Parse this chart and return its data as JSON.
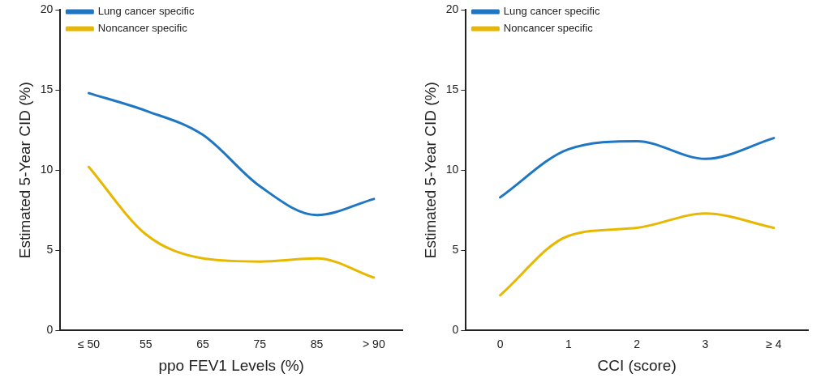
{
  "chart_data": [
    {
      "type": "line",
      "xlabel": "ppo FEV1 Levels (%)",
      "ylabel": "Estimated 5-Year CID (%)",
      "categories": [
        "≤ 50",
        "55",
        "65",
        "75",
        "85",
        "> 90"
      ],
      "series": [
        {
          "name": "Lung cancer specific",
          "color": "#1f77c4",
          "values": [
            14.8,
            13.7,
            12.2,
            9.0,
            7.2,
            8.2
          ]
        },
        {
          "name": "Noncancer specific",
          "color": "#e8b800",
          "values": [
            10.2,
            6.0,
            4.5,
            4.3,
            4.5,
            3.3
          ]
        }
      ],
      "ylim": [
        0,
        20
      ],
      "yticks": [
        0,
        5,
        10,
        15,
        20
      ],
      "grid": false,
      "legend": "top left",
      "marker": "none",
      "line_style": "solid"
    },
    {
      "type": "line",
      "xlabel": "CCI (score)",
      "ylabel": "Estimated 5-Year CID (%)",
      "categories": [
        "0",
        "1",
        "2",
        "3",
        "≥ 4"
      ],
      "series": [
        {
          "name": "Lung cancer specific",
          "color": "#1f77c4",
          "values": [
            8.3,
            11.3,
            11.8,
            10.7,
            12.0
          ]
        },
        {
          "name": "Noncancer specific",
          "color": "#e8b800",
          "values": [
            2.2,
            5.9,
            6.4,
            7.3,
            6.4
          ]
        }
      ],
      "ylim": [
        0,
        20
      ],
      "yticks": [
        0,
        5,
        10,
        15,
        20
      ],
      "grid": false,
      "legend": "top left",
      "marker": "none",
      "line_style": "solid"
    }
  ]
}
